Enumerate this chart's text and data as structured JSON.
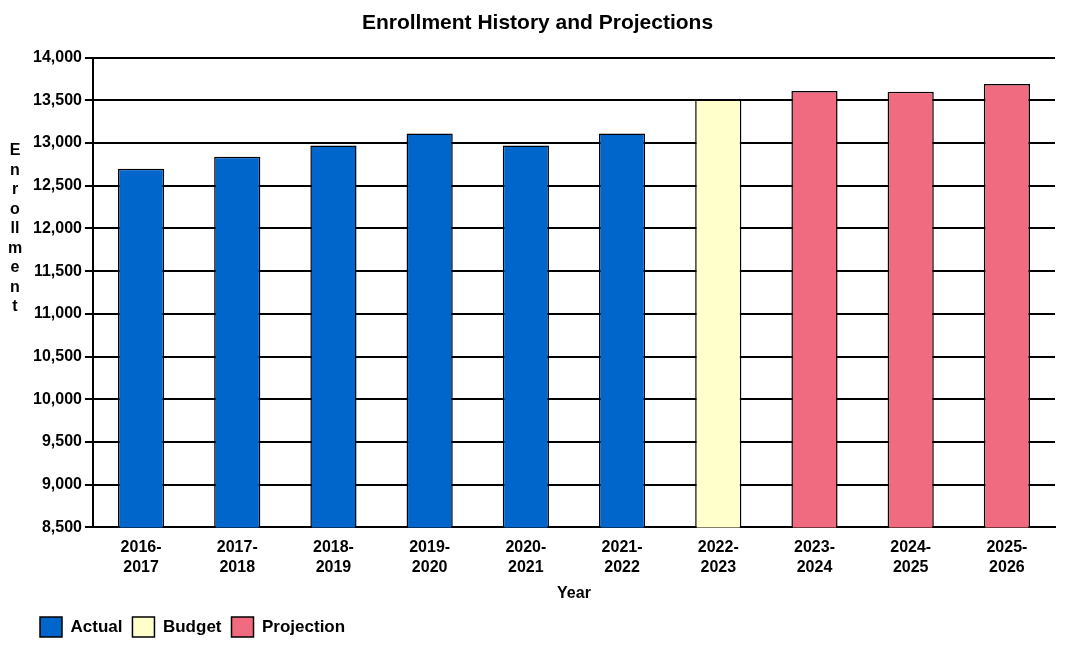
{
  "chart_data": {
    "type": "bar",
    "title": "Enrollment History and Projections",
    "xlabel": "Year",
    "ylabel": "Enrollment",
    "categories": [
      "2016-2017",
      "2017-2018",
      "2018-2019",
      "2019-2020",
      "2020-2021",
      "2021-2022",
      "2022-2023",
      "2023-2024",
      "2024-2025",
      "2025-2026"
    ],
    "series": [
      {
        "name": "Actual",
        "color": "#0066cc",
        "values": [
          12700,
          12840,
          12970,
          13110,
          12970,
          13110,
          null,
          null,
          null,
          null
        ]
      },
      {
        "name": "Budget",
        "color": "#ffffcc",
        "values": [
          null,
          null,
          null,
          null,
          null,
          null,
          13510,
          null,
          null,
          null
        ]
      },
      {
        "name": "Projection",
        "color": "#f06a80",
        "values": [
          null,
          null,
          null,
          null,
          null,
          null,
          null,
          13610,
          13600,
          13690
        ]
      }
    ],
    "ylim": [
      8500,
      14000
    ],
    "yticks": [
      {
        "value": 8500,
        "label": "8,500"
      },
      {
        "value": 9000,
        "label": "9,000"
      },
      {
        "value": 9500,
        "label": "9,500"
      },
      {
        "value": 10000,
        "label": "10,000"
      },
      {
        "value": 10500,
        "label": "10,500"
      },
      {
        "value": 11000,
        "label": "11,000"
      },
      {
        "value": 11500,
        "label": "11,500"
      },
      {
        "value": 12000,
        "label": "12,000"
      },
      {
        "value": 12500,
        "label": "12,500"
      },
      {
        "value": 13000,
        "label": "13,000"
      },
      {
        "value": 13500,
        "label": "13,500"
      },
      {
        "value": 14000,
        "label": "14,000"
      }
    ],
    "grid": "y",
    "legend": "bottom left"
  }
}
